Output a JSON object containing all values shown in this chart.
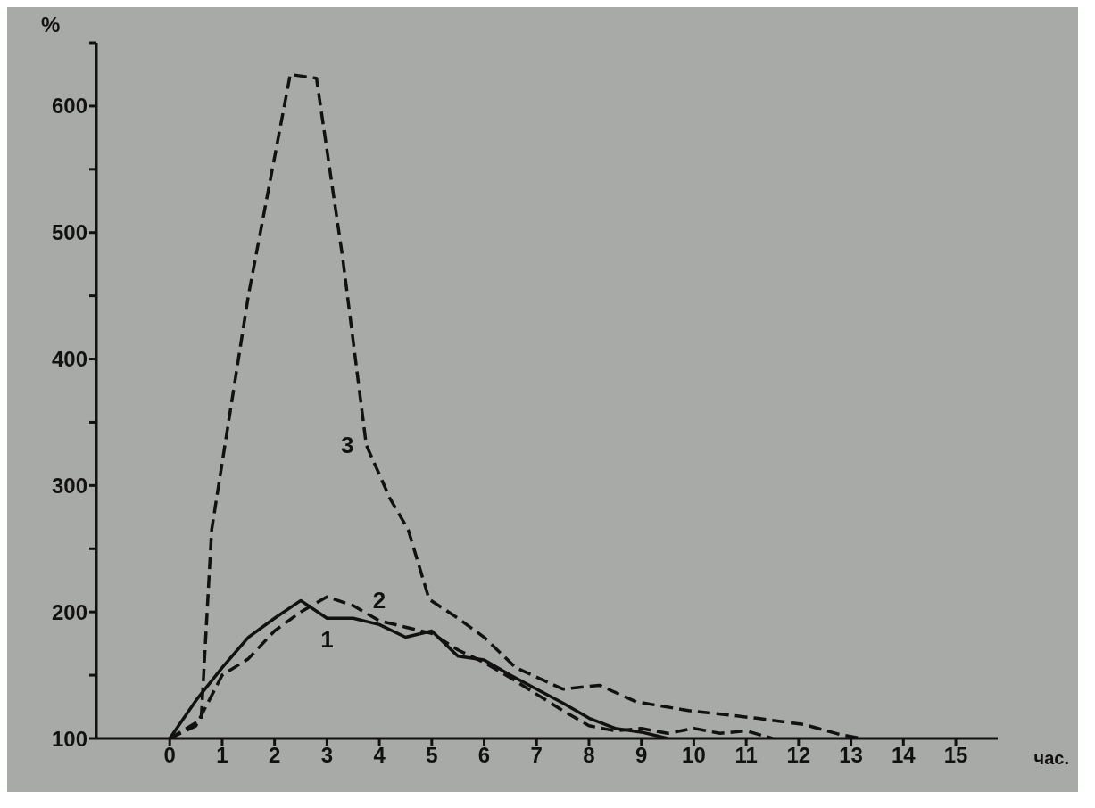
{
  "chart_data": {
    "type": "line",
    "ylabel": "%",
    "xlabel": "час.",
    "xlim": [
      -1.4,
      15.8
    ],
    "xticks": [
      0,
      1,
      2,
      3,
      4,
      5,
      6,
      7,
      8,
      9,
      10,
      11,
      12,
      13,
      14,
      15
    ],
    "ylim": [
      100,
      650
    ],
    "yticks": [
      100,
      {
        "value": 150,
        "label": null
      },
      200,
      {
        "value": 250,
        "label": null
      },
      300,
      {
        "value": 350,
        "label": null
      },
      400,
      {
        "value": 450,
        "label": null
      },
      500,
      {
        "value": 550,
        "label": null
      },
      600,
      {
        "value": 650,
        "label": null
      }
    ],
    "grid": false,
    "marker": "none",
    "series": [
      {
        "color": "#111111",
        "line_style": "solid",
        "x": [
          0,
          0.5,
          1,
          1.5,
          2,
          2.5,
          3,
          3.5,
          4,
          4.5,
          5,
          5.5,
          6,
          6.5,
          7,
          7.5,
          8,
          8.5,
          9,
          9.5
        ],
        "values": [
          100,
          130,
          156,
          180,
          195,
          209,
          195,
          195,
          190,
          180,
          185,
          165,
          162,
          150,
          139,
          128,
          116,
          108,
          105,
          100
        ]
      },
      {
        "color": "#111111",
        "line_style": "dashed",
        "x": [
          0,
          0.5,
          1,
          1.5,
          2,
          2.5,
          3,
          3.5,
          4,
          4.5,
          5,
          5.5,
          6,
          6.5,
          7,
          7.5,
          8,
          8.5,
          9,
          9.5,
          10,
          10.5,
          11,
          11.5
        ],
        "values": [
          100,
          110,
          150,
          163,
          185,
          200,
          212,
          205,
          193,
          188,
          183,
          170,
          160,
          148,
          135,
          122,
          110,
          106,
          108,
          104,
          108,
          104,
          106,
          100
        ]
      },
      {
        "color": "#111111",
        "line_style": "dashed",
        "x": [
          0,
          0.6,
          0.8,
          1.5,
          2.3,
          2.8,
          3.3,
          3.75,
          4.2,
          4.55,
          4.95,
          5.5,
          6,
          6.6,
          7.5,
          8.2,
          8.9,
          9.9,
          11.2,
          12.1,
          12.8,
          13.2
        ],
        "values": [
          100,
          115,
          265,
          450,
          625,
          622,
          480,
          332,
          290,
          265,
          210,
          195,
          180,
          156,
          139,
          142,
          129,
          122,
          116,
          111,
          103,
          100
        ]
      }
    ],
    "annotations": [
      "1",
      "2",
      "3"
    ]
  }
}
